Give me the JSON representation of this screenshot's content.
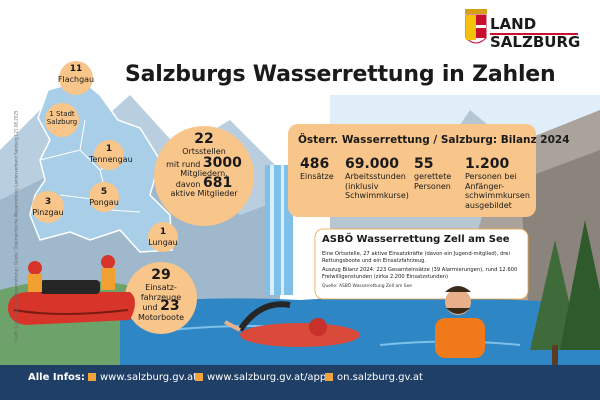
{
  "header": {
    "title": "Salzburgs Wasserrettung in Zahlen",
    "logo": {
      "line1": "LAND",
      "line2": "SALZBURG"
    }
  },
  "credit": "Grafik: Land Salzburg/Wasserrettung | Quelle: Österreichische Wasserrettung Landesverband Salzburg | 21.08.2025",
  "districts": [
    {
      "count": "11",
      "name": "Flachgau"
    },
    {
      "count": "1",
      "name": "Stadt Salzburg"
    },
    {
      "count": "1",
      "name": "Tennengau"
    },
    {
      "count": "5",
      "name": "Pongau"
    },
    {
      "count": "3",
      "name": "Pinzgau"
    },
    {
      "count": "1",
      "name": "Lungau"
    }
  ],
  "orts": {
    "count": "22",
    "label": "Ortsstellen",
    "line_a": "mit rund",
    "members": "3000",
    "line_b": "Mitgliedern,",
    "line_c": "davon",
    "active": "681",
    "line_d": "aktive Mitglieder"
  },
  "vehicles": {
    "count": "29",
    "label_a": "Einsatz-",
    "label_b": "fahrzeuge",
    "und": "und",
    "boats": "23",
    "boats_label": "Motorboote"
  },
  "bilanz": {
    "title": "Österr. Wasserrettung / Salzburg: Bilanz 2024",
    "stats": [
      {
        "value": "486",
        "label": "Einsätze"
      },
      {
        "value": "69.000",
        "label": "Arbeitsstunden (inklusiv Schwimmkurse)"
      },
      {
        "value": "55",
        "label": "gerettete Personen"
      },
      {
        "value": "1.200",
        "label": "Personen bei Anfänger-schwimmkursen ausgebildet"
      }
    ]
  },
  "zell": {
    "title": "ASBÖ Wasserrettung Zell am See",
    "p1": "Eine Ortsstelle, 27 aktive Einsatzkräfte (davon ein Jugend-mitglied), drei Rettungsboote und ein Einsatzfahrzeug.",
    "p2": "Auszug Bilanz 2024: 223 Gesamteinsätze (39 Alarmierungen), rund 12.600 Freiwilligenstunden (zirka 2.200 Einsatzstunden)",
    "source": "Quelle: ASBÖ Wasserrettung Zell am See"
  },
  "footer": {
    "label": "Alle Infos:",
    "links": [
      "www.salzburg.gv.at",
      "www.salzburg.gv.at/app",
      "on.salzburg.gv.at"
    ]
  },
  "colors": {
    "orange": "#f8c58a",
    "orange_dark": "#f2a33a",
    "map_blue": "#a9cfe8",
    "water": "#2f86c4",
    "footer": "#1f3f66",
    "brand_red": "#c8102e"
  }
}
